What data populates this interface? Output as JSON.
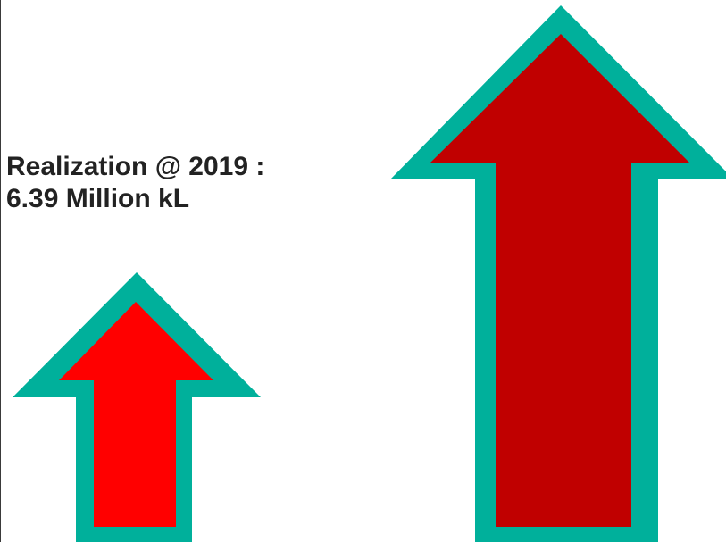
{
  "slide": {
    "text_line_1": "Realization @ 2019 :",
    "text_line_2": "6.39 Million kL"
  },
  "colors": {
    "arrow_outline": "#00b09b",
    "small_arrow_fill": "#ff0000",
    "large_arrow_fill": "#c00000",
    "text": "#222222"
  }
}
